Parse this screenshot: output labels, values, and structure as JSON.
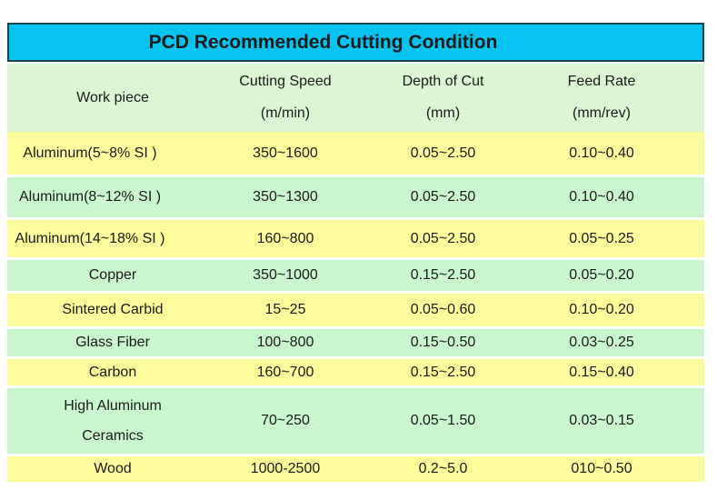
{
  "chart_data": {
    "type": "table",
    "title": "PCD Recommended Cutting Condition",
    "columns": [
      {
        "label": "Work piece",
        "unit": ""
      },
      {
        "label": "Cutting Speed",
        "unit": "(m/min)"
      },
      {
        "label": "Depth of Cut",
        "unit": "(mm)"
      },
      {
        "label": "Feed Rate",
        "unit": "(mm/rev)"
      }
    ],
    "rows": [
      {
        "workpiece": "Aluminum(5~8% SI )",
        "cutting_speed": "350~1600",
        "depth_of_cut": "0.05~2.50",
        "feed_rate": "0.10~0.40"
      },
      {
        "workpiece": "Aluminum(8~12% SI )",
        "cutting_speed": "350~1300",
        "depth_of_cut": "0.05~2.50",
        "feed_rate": "0.10~0.40"
      },
      {
        "workpiece": "Aluminum(14~18% SI )",
        "cutting_speed": "160~800",
        "depth_of_cut": "0.05~2.50",
        "feed_rate": "0.05~0.25"
      },
      {
        "workpiece": "Copper",
        "cutting_speed": "350~1000",
        "depth_of_cut": "0.15~2.50",
        "feed_rate": "0.05~0.20"
      },
      {
        "workpiece": "Sintered Carbid",
        "cutting_speed": "15~25",
        "depth_of_cut": "0.05~0.60",
        "feed_rate": "0.10~0.20"
      },
      {
        "workpiece": "Glass Fiber",
        "cutting_speed": "100~800",
        "depth_of_cut": "0.15~0.50",
        "feed_rate": "0.03~0.25"
      },
      {
        "workpiece": "Carbon",
        "cutting_speed": "160~700",
        "depth_of_cut": "0.15~2.50",
        "feed_rate": "0.15~0.40"
      },
      {
        "workpiece": "High Aluminum\nCeramics",
        "cutting_speed": "70~250",
        "depth_of_cut": "0.05~1.50",
        "feed_rate": "0.03~0.15"
      },
      {
        "workpiece": "Wood",
        "cutting_speed": "1000-2500",
        "depth_of_cut": "0.2~5.0",
        "feed_rate": "010~0.50"
      }
    ],
    "layout": {
      "row_stripe_colors": [
        "yellow",
        "green"
      ],
      "grid": false
    }
  },
  "colors": {
    "title_bg": "#06C3EF",
    "title_border": "#15414C",
    "header_bg": "#DCF5D2",
    "row_green": "#C9F6CD",
    "row_yellow": "#FDFC9C",
    "text": "#1B1B1B"
  }
}
